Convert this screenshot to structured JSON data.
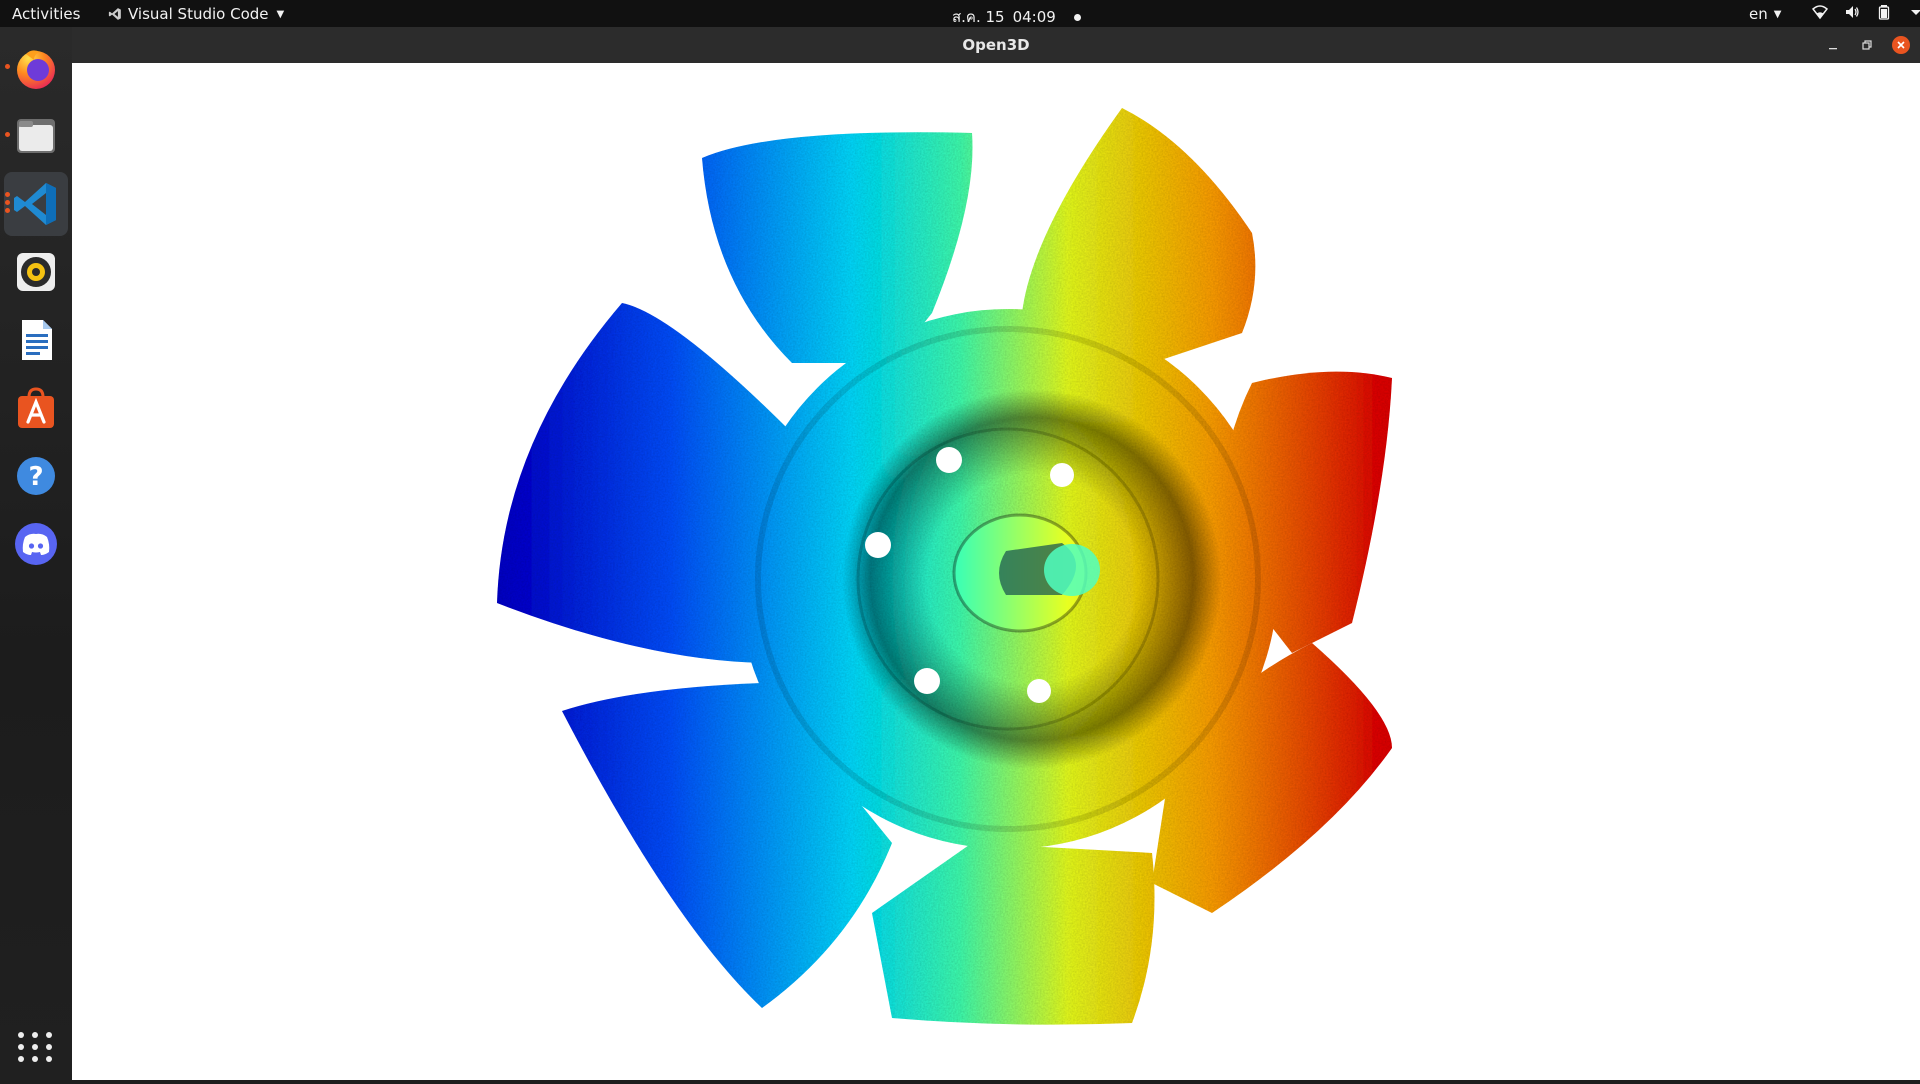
{
  "topbar": {
    "activities": "Activities",
    "app_name": "Visual Studio Code",
    "date": "ส.ค. 15",
    "time": "04:09",
    "language": "en"
  },
  "dock": {
    "items": [
      {
        "name": "firefox",
        "running": true
      },
      {
        "name": "files",
        "running": true
      },
      {
        "name": "visual-studio-code",
        "running": true,
        "active": true
      },
      {
        "name": "rhythmbox",
        "running": false
      },
      {
        "name": "libreoffice-writer",
        "running": false
      },
      {
        "name": "ubuntu-software",
        "running": false
      },
      {
        "name": "help",
        "running": false
      },
      {
        "name": "discord",
        "running": false
      }
    ],
    "show_apps_label": "Show Applications"
  },
  "window": {
    "title": "Open3D",
    "viewport_description": "colored point cloud of a fan",
    "colors": {
      "background": "#ffffff",
      "colormap": [
        "#0000c8",
        "#0060ff",
        "#00e0ff",
        "#40ffb0",
        "#e8ff20",
        "#ffb000",
        "#ff2000"
      ]
    }
  }
}
